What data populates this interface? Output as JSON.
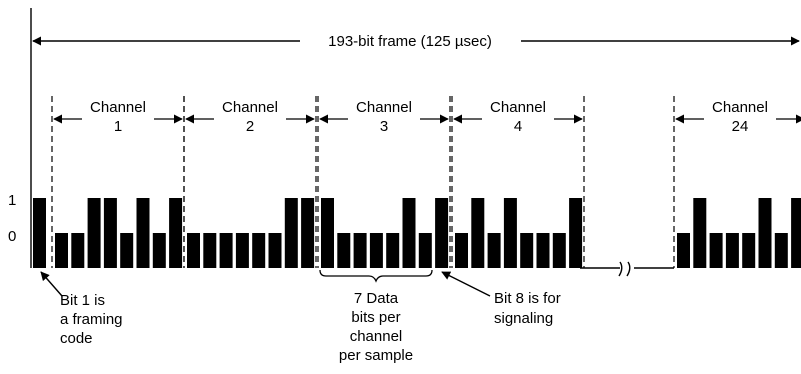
{
  "frame": {
    "label": "193-bit frame  (125 µsec)"
  },
  "channels": [
    {
      "word": "Channel",
      "number": "1",
      "bits": [
        0,
        0,
        1,
        1,
        0,
        1,
        0,
        1
      ]
    },
    {
      "word": "Channel",
      "number": "2",
      "bits": [
        0,
        0,
        0,
        0,
        0,
        0,
        1,
        1
      ]
    },
    {
      "word": "Channel",
      "number": "3",
      "bits": [
        1,
        0,
        0,
        0,
        0,
        1,
        0,
        1
      ]
    },
    {
      "word": "Channel",
      "number": "4",
      "bits": [
        0,
        1,
        0,
        1,
        0,
        0,
        0,
        1
      ]
    },
    {
      "word": "Channel",
      "number": "24",
      "bits": [
        0,
        1,
        0,
        0,
        0,
        1,
        0,
        1
      ]
    }
  ],
  "framing_bit": 1,
  "levels": {
    "high": "1",
    "low": "0"
  },
  "annotations": {
    "framing": [
      "Bit 1 is",
      "a framing",
      "code"
    ],
    "data_bits": [
      "7 Data",
      "bits per",
      "channel",
      "per sample"
    ],
    "signaling": [
      "Bit 8 is for",
      "signaling"
    ]
  },
  "colors": {
    "ink": "#000000",
    "background": "#ffffff"
  }
}
